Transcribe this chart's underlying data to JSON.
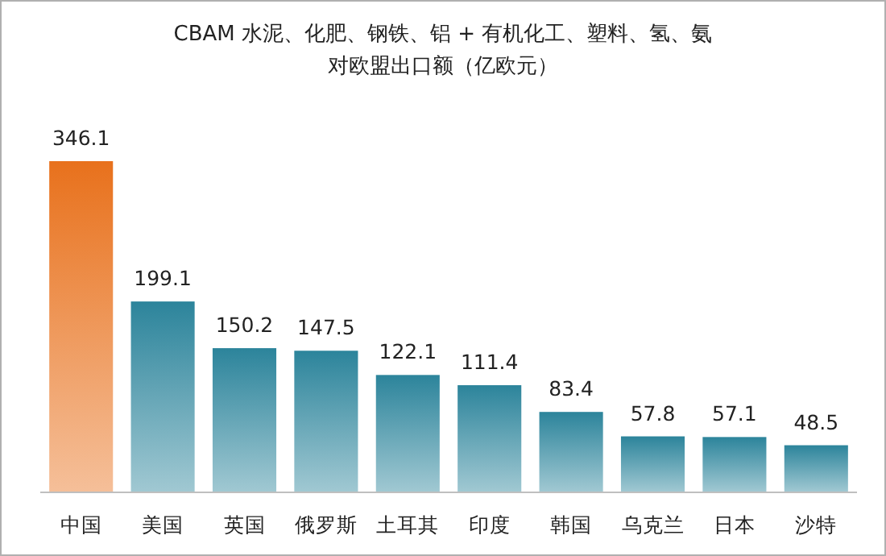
{
  "chart_data": {
    "type": "bar",
    "title": "CBAM 水泥、化肥、钢铁、铝 + 有机化工、塑料、氢、氨",
    "subtitle": "对欧盟出口额（亿欧元）",
    "categories": [
      "中国",
      "美国",
      "英国",
      "俄罗斯",
      "土耳其",
      "印度",
      "韩国",
      "乌克兰",
      "日本",
      "沙特"
    ],
    "values": [
      346.1,
      199.1,
      150.2,
      147.5,
      122.1,
      111.4,
      83.4,
      57.8,
      57.1,
      48.5
    ],
    "colors": [
      "#e8711c",
      "#2c849b",
      "#2c849b",
      "#2c849b",
      "#2c849b",
      "#2c849b",
      "#2c849b",
      "#2c849b",
      "#2c849b",
      "#2c849b"
    ],
    "data_labels": true
  }
}
